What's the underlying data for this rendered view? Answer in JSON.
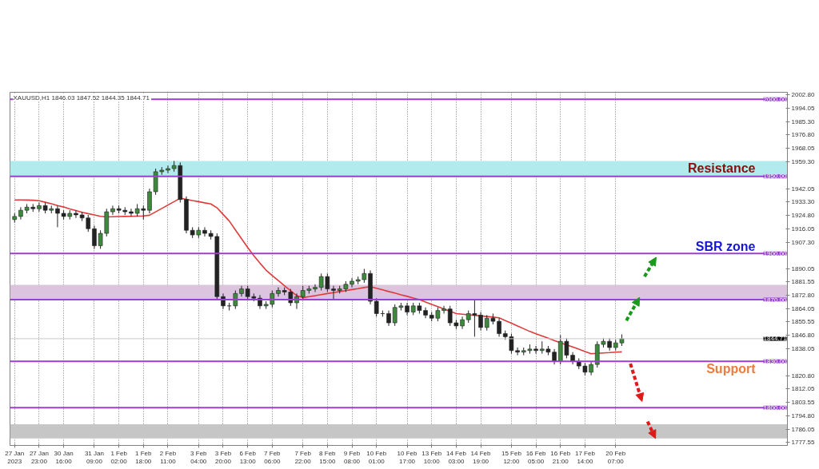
{
  "chart_data": {
    "type": "candlestick",
    "categories": [
      "27 Jan 2023",
      null,
      null,
      null,
      "27 Jan 23:00",
      null,
      null,
      null,
      "30 Jan 16:00",
      null,
      null,
      null,
      null,
      "31 Jan 09:00",
      null,
      null,
      null,
      "1 Feb 02:00",
      null,
      null,
      null,
      "1 Feb 18:00",
      null,
      null,
      null,
      "2 Feb 11:00",
      null,
      null,
      null,
      null,
      "3 Feb 04:00",
      null,
      null,
      null,
      "3 Feb 20:00",
      null,
      null,
      null,
      "6 Feb 13:00",
      null,
      null,
      null,
      "7 Feb 06:00",
      null,
      null,
      null,
      null,
      "7 Feb 22:00",
      null,
      null,
      null,
      "8 Feb 15:00",
      null,
      null,
      null,
      "9 Feb 08:00",
      null,
      null,
      null,
      "10 Feb 01:00",
      null,
      null,
      null,
      null,
      "10 Feb 17:00",
      null,
      null,
      null,
      "13 Feb 10:00",
      null,
      null,
      null,
      "14 Feb 03:00",
      null,
      null,
      null,
      "14 Feb 19:00",
      null,
      null,
      null,
      null,
      "15 Feb 12:00",
      null,
      null,
      null,
      "16 Feb 05:00",
      null,
      null,
      null,
      "16 Feb 21:00",
      null,
      null,
      null,
      "17 Feb 14:00",
      null,
      null,
      null,
      null,
      "20 Feb 07:00",
      null
    ],
    "series": [
      {
        "ohlc": [
          [
            1922,
            1926,
            1920,
            1924
          ],
          [
            1924,
            1930,
            1922,
            1928
          ],
          [
            1928,
            1932,
            1926,
            1930
          ],
          [
            1930,
            1932,
            1927,
            1929
          ],
          [
            1929,
            1933,
            1927,
            1931
          ],
          [
            1931,
            1933,
            1926,
            1928
          ],
          [
            1928,
            1931,
            1926,
            1929
          ],
          [
            1929,
            1931,
            1917,
            1926
          ],
          [
            1926,
            1928,
            1922,
            1924
          ],
          [
            1924,
            1928,
            1922,
            1926
          ],
          [
            1926,
            1928,
            1923,
            1925
          ],
          [
            1925,
            1927,
            1921,
            1923
          ],
          [
            1923,
            1925,
            1914,
            1916
          ],
          [
            1916,
            1918,
            1903,
            1905
          ],
          [
            1905,
            1915,
            1903,
            1913
          ],
          [
            1913,
            1929,
            1911,
            1927
          ],
          [
            1927,
            1931,
            1925,
            1929
          ],
          [
            1929,
            1931,
            1926,
            1928
          ],
          [
            1928,
            1930,
            1925,
            1927
          ],
          [
            1927,
            1929,
            1924,
            1926
          ],
          [
            1926,
            1932,
            1924,
            1929
          ],
          [
            1929,
            1931,
            1922,
            1928
          ],
          [
            1928,
            1942,
            1926,
            1940
          ],
          [
            1940,
            1955,
            1938,
            1953
          ],
          [
            1953,
            1956,
            1951,
            1954
          ],
          [
            1954,
            1957,
            1952,
            1955
          ],
          [
            1955,
            1960,
            1953,
            1957
          ],
          [
            1957,
            1959,
            1933,
            1935
          ],
          [
            1935,
            1937,
            1913,
            1915
          ],
          [
            1915,
            1917,
            1910,
            1912
          ],
          [
            1912,
            1917,
            1910,
            1915
          ],
          [
            1915,
            1917,
            1911,
            1913
          ],
          [
            1913,
            1915,
            1909,
            1911
          ],
          [
            1911,
            1913,
            1870,
            1872
          ],
          [
            1872,
            1874,
            1864,
            1866
          ],
          [
            1866,
            1868,
            1863,
            1866
          ],
          [
            1866,
            1876,
            1864,
            1874
          ],
          [
            1874,
            1879,
            1872,
            1877
          ],
          [
            1877,
            1879,
            1870,
            1872
          ],
          [
            1872,
            1874,
            1869,
            1871
          ],
          [
            1871,
            1873,
            1864,
            1866
          ],
          [
            1866,
            1869,
            1864,
            1867
          ],
          [
            1867,
            1876,
            1865,
            1874
          ],
          [
            1874,
            1878,
            1872,
            1876
          ],
          [
            1876,
            1878,
            1873,
            1875
          ],
          [
            1875,
            1877,
            1866,
            1868
          ],
          [
            1868,
            1874,
            1864,
            1872
          ],
          [
            1872,
            1879,
            1870,
            1876
          ],
          [
            1876,
            1879,
            1874,
            1877
          ],
          [
            1877,
            1880,
            1875,
            1878
          ],
          [
            1878,
            1887,
            1876,
            1885
          ],
          [
            1885,
            1887,
            1875,
            1877
          ],
          [
            1877,
            1879,
            1870,
            1876
          ],
          [
            1876,
            1879,
            1874,
            1877
          ],
          [
            1877,
            1882,
            1875,
            1880
          ],
          [
            1880,
            1884,
            1878,
            1882
          ],
          [
            1882,
            1885,
            1880,
            1883
          ],
          [
            1883,
            1890,
            1881,
            1887
          ],
          [
            1887,
            1889,
            1867,
            1869
          ],
          [
            1869,
            1871,
            1859,
            1861
          ],
          [
            1861,
            1863,
            1859,
            1861
          ],
          [
            1861,
            1863,
            1853,
            1855
          ],
          [
            1855,
            1867,
            1853,
            1865
          ],
          [
            1865,
            1868,
            1863,
            1866
          ],
          [
            1866,
            1868,
            1860,
            1862
          ],
          [
            1862,
            1868,
            1860,
            1866
          ],
          [
            1866,
            1868,
            1861,
            1863
          ],
          [
            1863,
            1865,
            1858,
            1860
          ],
          [
            1860,
            1862,
            1856,
            1858
          ],
          [
            1858,
            1865,
            1856,
            1863
          ],
          [
            1863,
            1866,
            1861,
            1864
          ],
          [
            1864,
            1866,
            1853,
            1855
          ],
          [
            1855,
            1857,
            1851,
            1853
          ],
          [
            1853,
            1859,
            1851,
            1857
          ],
          [
            1857,
            1863,
            1855,
            1861
          ],
          [
            1861,
            1870,
            1846,
            1860
          ],
          [
            1860,
            1862,
            1850,
            1852
          ],
          [
            1852,
            1860,
            1850,
            1858
          ],
          [
            1858,
            1861,
            1854,
            1856
          ],
          [
            1856,
            1858,
            1846,
            1848
          ],
          [
            1848,
            1850,
            1844,
            1846
          ],
          [
            1846,
            1848,
            1835,
            1837
          ],
          [
            1837,
            1839,
            1834,
            1836
          ],
          [
            1836,
            1839,
            1834,
            1837
          ],
          [
            1837,
            1841,
            1835,
            1838
          ],
          [
            1838,
            1840,
            1835,
            1837
          ],
          [
            1837,
            1843,
            1835,
            1838
          ],
          [
            1838,
            1840,
            1834,
            1836
          ],
          [
            1836,
            1838,
            1828,
            1830
          ],
          [
            1830,
            1847,
            1828,
            1843
          ],
          [
            1843,
            1845,
            1832,
            1834
          ],
          [
            1834,
            1836,
            1828,
            1830
          ],
          [
            1830,
            1832,
            1825,
            1827
          ],
          [
            1827,
            1829,
            1821,
            1823
          ],
          [
            1823,
            1830,
            1821,
            1828
          ],
          [
            1828,
            1843,
            1826,
            1841
          ],
          [
            1841,
            1845,
            1839,
            1843
          ],
          [
            1843,
            1845,
            1837,
            1839
          ],
          [
            1839,
            1844,
            1837,
            1842
          ],
          [
            1842,
            1847.5,
            1840,
            1844.7
          ]
        ]
      },
      {
        "type": "line",
        "color": "#e03a3a",
        "values": [
          1934.7,
          1934.7,
          1934.6,
          1934.5,
          1934.2,
          1933.2,
          1932.2,
          1931.1,
          1930.1,
          1928.9,
          1927.8,
          1926.7,
          1925.8,
          1925.0,
          1924.1,
          1923.7,
          1923.8,
          1923.9,
          1924.0,
          1924.1,
          1924.2,
          1924.3,
          1924.8,
          1927.0,
          1929.2,
          1931.4,
          1933.6,
          1935.8,
          1935.1,
          1934.3,
          1933.6,
          1932.8,
          1932.1,
          1929.6,
          1925.3,
          1921,
          1915.3,
          1909.6,
          1903.9,
          1898.6,
          1893.7,
          1889.2,
          1885.7,
          1882.4,
          1879.1,
          1875.8,
          1872.6,
          1871.3,
          1872.0,
          1872.6,
          1873.3,
          1874.0,
          1874.6,
          1875.3,
          1875.9,
          1876.6,
          1877.2,
          1877.9,
          1878.5,
          1877.4,
          1876.4,
          1875.3,
          1874.3,
          1873.2,
          1872.2,
          1871.1,
          1870,
          1868.5,
          1867.0,
          1865.5,
          1864.0,
          1862.5,
          1861,
          1860.6,
          1860.2,
          1859.8,
          1859.5,
          1859.1,
          1858.7,
          1858.3,
          1856.5,
          1854.8,
          1853.0,
          1851.2,
          1849.4,
          1847.9,
          1846.5,
          1845.0,
          1843.5,
          1842.1,
          1840.7,
          1839.3,
          1837.9,
          1836.4,
          1835,
          1835.2,
          1835.5,
          1835.7,
          1836.0,
          1836.2
        ]
      }
    ],
    "ylim": [
      1775.5,
      2004.5
    ],
    "yticks": [
      {
        "value": 2002.8,
        "label": "2002.80"
      },
      {
        "value": 1994.05,
        "label": "1994.05"
      },
      {
        "value": 1985.3,
        "label": "1985.30"
      },
      {
        "value": 1976.8,
        "label": "1976.80"
      },
      {
        "value": 1968.05,
        "label": "1968.05"
      },
      {
        "value": 1959.3,
        "label": "1959.30"
      },
      {
        "value": 1942.05,
        "label": "1942.05"
      },
      {
        "value": 1933.3,
        "label": "1933.30"
      },
      {
        "value": 1924.8,
        "label": "1924.80"
      },
      {
        "value": 1916.05,
        "label": "1916.05"
      },
      {
        "value": 1907.3,
        "label": "1907.30"
      },
      {
        "value": 1890.05,
        "label": "1890.05"
      },
      {
        "value": 1881.55,
        "label": "1881.55"
      },
      {
        "value": 1872.8,
        "label": "1872.80"
      },
      {
        "value": 1864.05,
        "label": "1864.05"
      },
      {
        "value": 1855.55,
        "label": "1855.55"
      },
      {
        "value": 1846.8,
        "label": "1846.80"
      },
      {
        "value": 1838.05,
        "label": "1838.05"
      },
      {
        "value": 1820.8,
        "label": "1820.80"
      },
      {
        "value": 1812.05,
        "label": "1812.05"
      },
      {
        "value": 1803.55,
        "label": "1803.55"
      },
      {
        "value": 1794.8,
        "label": "1794.80"
      },
      {
        "value": 1786.05,
        "label": "1786.05"
      },
      {
        "value": 1777.55,
        "label": "1777.55"
      }
    ],
    "ref_lines": [
      {
        "axis": "y",
        "value": 2000,
        "label": "2000.00",
        "color": "#9b3fd0"
      },
      {
        "axis": "y",
        "value": 1950,
        "label": "1950.00",
        "color": "#9b3fd0"
      },
      {
        "axis": "y",
        "value": 1900,
        "label": "1900.00",
        "color": "#9b3fd0"
      },
      {
        "axis": "y",
        "value": 1870,
        "label": "1870.00",
        "color": "#9b3fd0"
      },
      {
        "axis": "y",
        "value": 1830,
        "label": "1830.00",
        "color": "#9b3fd0"
      },
      {
        "axis": "y",
        "value": 1800,
        "label": "1800.00",
        "color": "#9b3fd0"
      },
      {
        "axis": "y",
        "value": 1844.71,
        "label": "1844.71",
        "color": "#c8c8c8"
      }
    ],
    "bands": [
      {
        "axis": "y",
        "from": 1950,
        "to": 1960,
        "color": "#b2ebee"
      },
      {
        "axis": "y",
        "from": 1870,
        "to": 1879.7,
        "color": "#dcc3de"
      },
      {
        "axis": "y",
        "from": 1780,
        "to": 1789.2,
        "color": "#c6c6c6"
      }
    ],
    "annotations": [
      "XAUUSD,H1  1846.03 1847.52 1844.35 1844.71",
      "Resistance",
      "SBR zone",
      "Support"
    ],
    "grid": "x"
  }
}
